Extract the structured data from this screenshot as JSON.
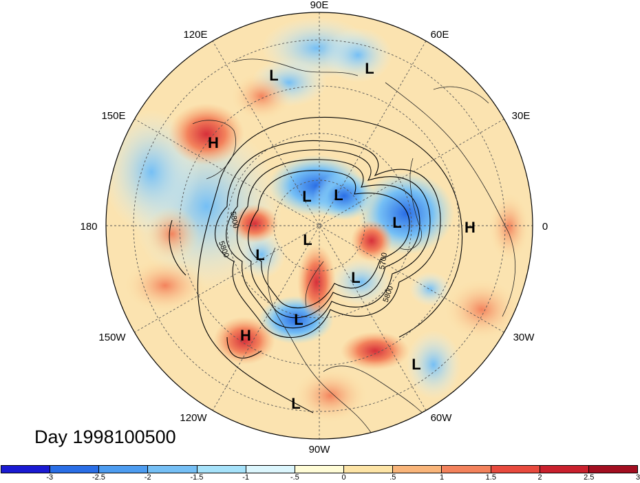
{
  "map": {
    "longitude_labels": [
      "90E",
      "60E",
      "30E",
      "0",
      "30W",
      "60W",
      "90W",
      "120W",
      "150W",
      "180",
      "150E",
      "120E"
    ],
    "centers": [
      {
        "type": "L",
        "label": "L"
      },
      {
        "type": "L",
        "label": "L"
      },
      {
        "type": "H",
        "label": "H"
      },
      {
        "type": "L",
        "label": "L"
      },
      {
        "type": "L",
        "label": "L"
      },
      {
        "type": "L",
        "label": "L"
      },
      {
        "type": "H",
        "label": "H"
      },
      {
        "type": "L",
        "label": "L"
      },
      {
        "type": "L",
        "label": "L"
      },
      {
        "type": "L",
        "label": "L"
      },
      {
        "type": "L",
        "label": "L"
      },
      {
        "type": "H",
        "label": "H"
      },
      {
        "type": "L",
        "label": "L"
      },
      {
        "type": "L",
        "label": "L"
      }
    ],
    "contour_labels": [
      "5800",
      "5800",
      "5700",
      "5800"
    ],
    "high_color": "#000000",
    "low_color": "#000000"
  },
  "title": {
    "date_text": "Day 1998100500"
  },
  "colorbar": {
    "colors": [
      "#1a1ad2",
      "#2a6ee6",
      "#4d9cf0",
      "#75bff5",
      "#a6e2fa",
      "#dcf6fd",
      "#fffcd6",
      "#fde4a6",
      "#f9b57a",
      "#f3825c",
      "#e84a3e",
      "#c9202d",
      "#a20e20"
    ],
    "tick_labels": [
      "-3",
      "-2.5",
      "-2",
      "-1.5",
      "-1",
      "-.5",
      "0",
      ".5",
      "1",
      "1.5",
      "2",
      "2.5",
      "3"
    ]
  }
}
